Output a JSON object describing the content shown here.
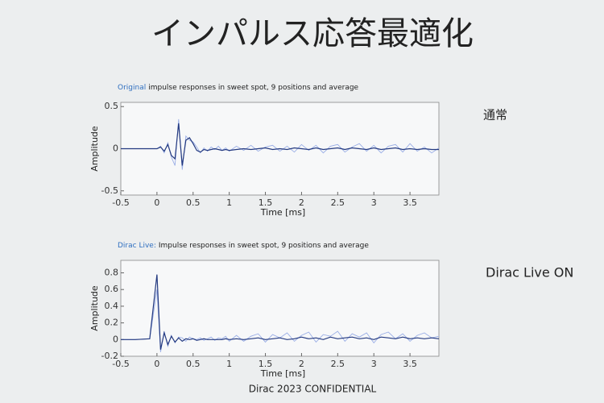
{
  "slide": {
    "title": "インパルス応答最適化",
    "footer": "Dirac 2023 CONFIDENTIAL"
  },
  "chart_data": [
    {
      "type": "line",
      "title_prefix": "Original",
      "title": "impulse responses in sweet spot, 9 positions and average",
      "side_label": "通常",
      "xlabel": "Time [ms]",
      "ylabel": "Amplitude",
      "x": [
        -0.5,
        -0.3,
        -0.1,
        0,
        0.05,
        0.1,
        0.15,
        0.2,
        0.25,
        0.3,
        0.35,
        0.4,
        0.45,
        0.5,
        0.55,
        0.6,
        0.65,
        0.7,
        0.75,
        0.8,
        0.85,
        0.9,
        0.95,
        1.0,
        1.1,
        1.2,
        1.3,
        1.4,
        1.5,
        1.6,
        1.7,
        1.8,
        1.9,
        2.0,
        2.1,
        2.2,
        2.3,
        2.4,
        2.5,
        2.6,
        2.7,
        2.8,
        2.9,
        3.0,
        3.1,
        3.2,
        3.3,
        3.4,
        3.5,
        3.6,
        3.7,
        3.8,
        3.9
      ],
      "xlim": [
        -0.5,
        3.9
      ],
      "xticks": [
        -0.5,
        0,
        0.5,
        1,
        1.5,
        2,
        2.5,
        3,
        3.5
      ],
      "ylim": [
        -0.55,
        0.55
      ],
      "yticks": [
        -0.5,
        0,
        0.5
      ],
      "series": [
        {
          "color": "#9aaee6",
          "values": [
            0,
            0,
            0,
            0,
            0.03,
            -0.05,
            0.07,
            -0.1,
            -0.2,
            0.35,
            -0.25,
            0.15,
            0.1,
            0.08,
            0.02,
            -0.05,
            0.01,
            -0.03,
            0.02,
            -0.01,
            0.03,
            -0.02,
            0.01,
            -0.03,
            0.03,
            -0.02,
            0.04,
            -0.03,
            0.02,
            0.04,
            -0.03,
            0.03,
            -0.04,
            0.05,
            -0.02,
            0.04,
            -0.05,
            0.03,
            0.05,
            -0.04,
            0.02,
            0.06,
            -0.03,
            0.04,
            -0.05,
            0.03,
            0.05,
            -0.04,
            0.06,
            -0.03,
            0.02,
            -0.05,
            0.01
          ]
        },
        {
          "color": "#243a80",
          "values": [
            0,
            0,
            0,
            0,
            0.02,
            -0.03,
            0.05,
            -0.08,
            -0.12,
            0.3,
            -0.2,
            0.1,
            0.13,
            0.06,
            -0.02,
            -0.04,
            -0.01,
            -0.02,
            -0.01,
            0,
            -0.01,
            -0.02,
            -0.01,
            -0.02,
            -0.01,
            0,
            -0.01,
            0,
            0.01,
            -0.01,
            0,
            -0.01,
            0.01,
            0,
            -0.01,
            0.01,
            -0.01,
            0,
            0.01,
            -0.01,
            0.01,
            0,
            -0.01,
            0.01,
            -0.01,
            0,
            0.01,
            -0.01,
            0,
            -0.01,
            0,
            -0.01,
            -0.01
          ]
        }
      ]
    },
    {
      "type": "line",
      "title_prefix": "Dirac Live:",
      "title": "Impulse responses in sweet spot, 9 positions and average",
      "side_label": "Dirac Live ON",
      "xlabel": "Time [ms]",
      "ylabel": "Amplitude",
      "x": [
        -0.5,
        -0.3,
        -0.1,
        0,
        0.05,
        0.1,
        0.15,
        0.2,
        0.25,
        0.3,
        0.35,
        0.4,
        0.45,
        0.5,
        0.55,
        0.6,
        0.65,
        0.7,
        0.75,
        0.8,
        0.85,
        0.9,
        0.95,
        1.0,
        1.1,
        1.2,
        1.3,
        1.4,
        1.5,
        1.6,
        1.7,
        1.8,
        1.9,
        2.0,
        2.1,
        2.2,
        2.3,
        2.4,
        2.5,
        2.6,
        2.7,
        2.8,
        2.9,
        3.0,
        3.1,
        3.2,
        3.3,
        3.4,
        3.5,
        3.6,
        3.7,
        3.8,
        3.9
      ],
      "xlim": [
        -0.5,
        3.9
      ],
      "xticks": [
        -0.5,
        0,
        0.5,
        1,
        1.5,
        2,
        2.5,
        3,
        3.5
      ],
      "ylim": [
        -0.2,
        0.95
      ],
      "yticks": [
        -0.2,
        0,
        0.2,
        0.4,
        0.6,
        0.8
      ],
      "series": [
        {
          "color": "#9aaee6",
          "values": [
            0,
            0,
            0.01,
            0.6,
            -0.15,
            0.1,
            -0.08,
            0.05,
            -0.04,
            0.03,
            0.02,
            -0.02,
            0.03,
            0.01,
            0,
            0.02,
            -0.01,
            0.01,
            0.03,
            -0.01,
            0.02,
            0.01,
            0.04,
            -0.02,
            0.05,
            -0.02,
            0.04,
            0.07,
            -0.03,
            0.06,
            0.02,
            0.08,
            -0.02,
            0.05,
            0.09,
            -0.03,
            0.06,
            0.04,
            0.1,
            -0.02,
            0.07,
            0.03,
            0.08,
            -0.04,
            0.06,
            0.09,
            0.01,
            0.07,
            -0.02,
            0.05,
            0.08,
            0.02,
            0.04
          ]
        },
        {
          "color": "#243a80",
          "values": [
            0,
            0,
            0.01,
            0.78,
            -0.12,
            0.08,
            -0.06,
            0.04,
            -0.03,
            0.02,
            -0.02,
            0.01,
            0,
            0.01,
            -0.01,
            0,
            0.01,
            0,
            0,
            0,
            0,
            0,
            0.01,
            0,
            0.01,
            0,
            0.01,
            0.02,
            0,
            0.01,
            0.02,
            0,
            0.01,
            0.03,
            0.01,
            0.02,
            0,
            0.03,
            0.01,
            0.02,
            0.03,
            0.01,
            0.02,
            0,
            0.03,
            0.02,
            0.01,
            0.03,
            0.01,
            0.02,
            0.01,
            0.02,
            0.01
          ]
        }
      ]
    }
  ]
}
